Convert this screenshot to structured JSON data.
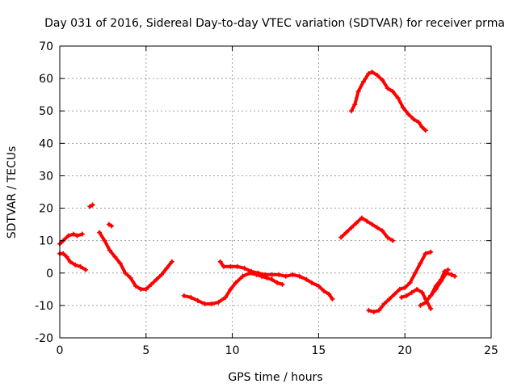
{
  "chart_data": {
    "type": "scatter",
    "title": "Day 031 of 2016, Sidereal Day-to-day VTEC variation (SDTVAR) for receiver prma",
    "xlabel": "GPS time / hours",
    "ylabel": "SDTVAR / TECUs",
    "xlim": [
      0,
      25
    ],
    "ylim": [
      -20,
      70
    ],
    "xticks": [
      "0",
      "5",
      "10",
      "15",
      "20",
      "25"
    ],
    "yticks": [
      "-20",
      "-10",
      "0",
      "10",
      "20",
      "30",
      "40",
      "50",
      "60",
      "70"
    ],
    "grid": true,
    "legend": "none",
    "color": "#ff0000",
    "series": [
      {
        "values": [
          [
            0.0,
            9
          ],
          [
            0.2,
            10
          ],
          [
            0.5,
            11.5
          ],
          [
            0.8,
            12
          ],
          [
            1.0,
            11.5
          ],
          [
            1.3,
            12
          ]
        ]
      },
      {
        "values": [
          [
            1.75,
            20.5
          ],
          [
            1.9,
            21
          ]
        ]
      },
      {
        "values": [
          [
            2.85,
            15
          ],
          [
            3.0,
            14.5
          ]
        ]
      },
      {
        "values": [
          [
            0.0,
            6
          ],
          [
            0.2,
            6
          ],
          [
            0.4,
            5
          ],
          [
            0.6,
            3.5
          ],
          [
            0.9,
            2.5
          ],
          [
            1.2,
            2
          ],
          [
            1.5,
            1
          ]
        ]
      },
      {
        "values": [
          [
            2.3,
            12.5
          ],
          [
            2.6,
            10
          ],
          [
            2.9,
            7
          ],
          [
            3.2,
            5
          ],
          [
            3.5,
            3
          ],
          [
            3.8,
            0
          ],
          [
            4.1,
            -1.5
          ],
          [
            4.4,
            -4
          ],
          [
            4.7,
            -5
          ],
          [
            5.0,
            -5
          ],
          [
            5.3,
            -3.5
          ],
          [
            5.6,
            -2
          ],
          [
            5.9,
            -0.5
          ],
          [
            6.2,
            1.5
          ],
          [
            6.5,
            3.5
          ]
        ]
      },
      {
        "values": [
          [
            7.2,
            -7
          ],
          [
            7.6,
            -7.5
          ],
          [
            8.0,
            -8.5
          ],
          [
            8.4,
            -9.5
          ],
          [
            8.8,
            -9.5
          ],
          [
            9.2,
            -9
          ],
          [
            9.6,
            -7.5
          ],
          [
            9.9,
            -5
          ],
          [
            10.2,
            -3
          ],
          [
            10.6,
            -1
          ],
          [
            11.0,
            0
          ],
          [
            11.4,
            -0.5
          ],
          [
            11.7,
            -1
          ],
          [
            12.0,
            -1.5
          ],
          [
            12.3,
            -2
          ],
          [
            12.6,
            -3
          ],
          [
            12.9,
            -3.5
          ]
        ]
      },
      {
        "values": [
          [
            9.3,
            3.5
          ],
          [
            9.5,
            2
          ],
          [
            9.9,
            2
          ],
          [
            10.3,
            2
          ],
          [
            10.7,
            1.5
          ],
          [
            11.1,
            0.5
          ],
          [
            11.5,
            0
          ],
          [
            11.9,
            -0.5
          ],
          [
            12.3,
            -0.5
          ],
          [
            12.7,
            -0.5
          ],
          [
            13.1,
            -1
          ],
          [
            13.5,
            -0.5
          ],
          [
            13.9,
            -1
          ],
          [
            14.3,
            -2
          ],
          [
            14.6,
            -3
          ],
          [
            15.0,
            -4
          ],
          [
            15.3,
            -5.5
          ],
          [
            15.6,
            -6.5
          ],
          [
            15.8,
            -8
          ]
        ]
      },
      {
        "values": [
          [
            16.3,
            11
          ],
          [
            16.6,
            12.5
          ],
          [
            16.9,
            14
          ],
          [
            17.2,
            15.5
          ],
          [
            17.5,
            17
          ],
          [
            17.8,
            16
          ],
          [
            18.1,
            15
          ],
          [
            18.4,
            14
          ],
          [
            18.7,
            13
          ],
          [
            19.0,
            11
          ],
          [
            19.3,
            10
          ]
        ]
      },
      {
        "values": [
          [
            16.9,
            50
          ],
          [
            17.1,
            52
          ],
          [
            17.3,
            56
          ],
          [
            17.6,
            59
          ],
          [
            17.9,
            61.5
          ],
          [
            18.1,
            62
          ],
          [
            18.4,
            61
          ],
          [
            18.7,
            59.5
          ],
          [
            19.0,
            57
          ],
          [
            19.3,
            56
          ],
          [
            19.6,
            54
          ],
          [
            19.9,
            51
          ],
          [
            20.2,
            49
          ],
          [
            20.5,
            47.5
          ],
          [
            20.8,
            46.5
          ],
          [
            21.0,
            45
          ],
          [
            21.2,
            44
          ]
        ]
      },
      {
        "values": [
          [
            17.9,
            -11.5
          ],
          [
            18.2,
            -12
          ],
          [
            18.5,
            -11.5
          ],
          [
            18.8,
            -9.5
          ],
          [
            19.1,
            -8
          ],
          [
            19.4,
            -6.5
          ],
          [
            19.7,
            -5
          ],
          [
            20.0,
            -4.5
          ],
          [
            20.3,
            -3
          ],
          [
            20.6,
            0
          ],
          [
            20.9,
            3
          ],
          [
            21.2,
            6
          ],
          [
            21.5,
            6.5
          ]
        ]
      },
      {
        "values": [
          [
            19.8,
            -7.5
          ],
          [
            20.1,
            -7
          ],
          [
            20.4,
            -6
          ],
          [
            20.7,
            -5
          ],
          [
            21.0,
            -6
          ],
          [
            21.2,
            -8
          ],
          [
            21.5,
            -11
          ]
        ]
      },
      {
        "values": [
          [
            20.9,
            -10
          ],
          [
            21.2,
            -9
          ],
          [
            21.5,
            -7
          ],
          [
            21.8,
            -5
          ],
          [
            22.1,
            -2.5
          ],
          [
            22.4,
            0
          ],
          [
            22.7,
            -0.5
          ],
          [
            22.9,
            -1
          ]
        ]
      },
      {
        "values": [
          [
            21.5,
            -7
          ],
          [
            21.8,
            -4
          ],
          [
            22.1,
            -2
          ],
          [
            22.3,
            0.5
          ],
          [
            22.5,
            1
          ]
        ]
      }
    ]
  }
}
